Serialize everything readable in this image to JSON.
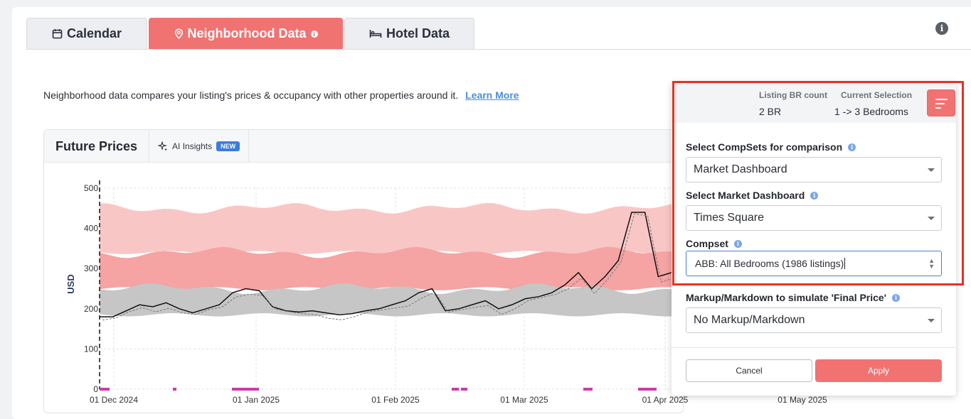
{
  "tabs": [
    {
      "label": "Calendar",
      "icon": "calendar-icon",
      "active": false
    },
    {
      "label": "Neighborhood Data",
      "icon": "map-pin-icon",
      "active": true
    },
    {
      "label": "Hotel Data",
      "icon": "bed-icon",
      "active": false
    }
  ],
  "description": "Neighborhood data compares your listing's prices & occupancy with other properties around it.",
  "learn_more": "Learn More",
  "panel": {
    "title": "Future Prices",
    "ai_insights": "AI Insights",
    "new_badge": "NEW"
  },
  "chart_data": {
    "type": "area",
    "ylabel": "USD",
    "ylim": [
      0,
      500
    ],
    "yticks": [
      "500",
      "400",
      "300",
      "200",
      "100",
      "0"
    ],
    "xticks": [
      "01 Dec 2024",
      "01 Jan 2025",
      "01 Feb 2025",
      "01 Mar 2025",
      "01 Apr 2025",
      "01 May 2025"
    ],
    "grid": true,
    "series": [
      {
        "name": "",
        "color": "#f9c6c6",
        "kind": "band-upper",
        "low": 340,
        "high": 450
      },
      {
        "name": "",
        "color": "#f5a3a3",
        "kind": "band-middle",
        "low": 250,
        "high": 340
      },
      {
        "name": "",
        "color": "#c6c6c6",
        "kind": "band-lower",
        "low": 185,
        "high": 250
      },
      {
        "name": "",
        "color": "#111111",
        "kind": "line",
        "values": [
          180,
          180,
          195,
          210,
          205,
          215,
          200,
          190,
          200,
          210,
          240,
          250,
          245,
          205,
          195,
          192,
          195,
          190,
          185,
          188,
          195,
          200,
          210,
          220,
          240,
          250,
          195,
          200,
          210,
          220,
          200,
          210,
          225,
          230,
          240,
          260,
          290,
          250,
          280,
          320,
          440,
          440,
          280,
          290
        ]
      }
    ]
  },
  "overlay": {
    "listing_br_label": "Listing BR count",
    "listing_br_value": "2 BR",
    "current_selection_label": "Current Selection",
    "current_selection_value": "1 -> 3 Bedrooms",
    "compsets_label": "Select CompSets for comparison",
    "compsets_value": "Market Dashboard",
    "market_label": "Select Market Dashboard",
    "market_value": "Times Square",
    "compset_label": "Compset",
    "compset_value": "ABB: All Bedrooms (1986 listings)",
    "markup_label": "Markup/Markdown to simulate 'Final Price'",
    "markup_value": "No Markup/Markdown",
    "cancel": "Cancel",
    "apply": "Apply"
  },
  "colors": {
    "accent": "#f07372",
    "highlight_box": "#e8321f",
    "link": "#4a8fe0"
  }
}
